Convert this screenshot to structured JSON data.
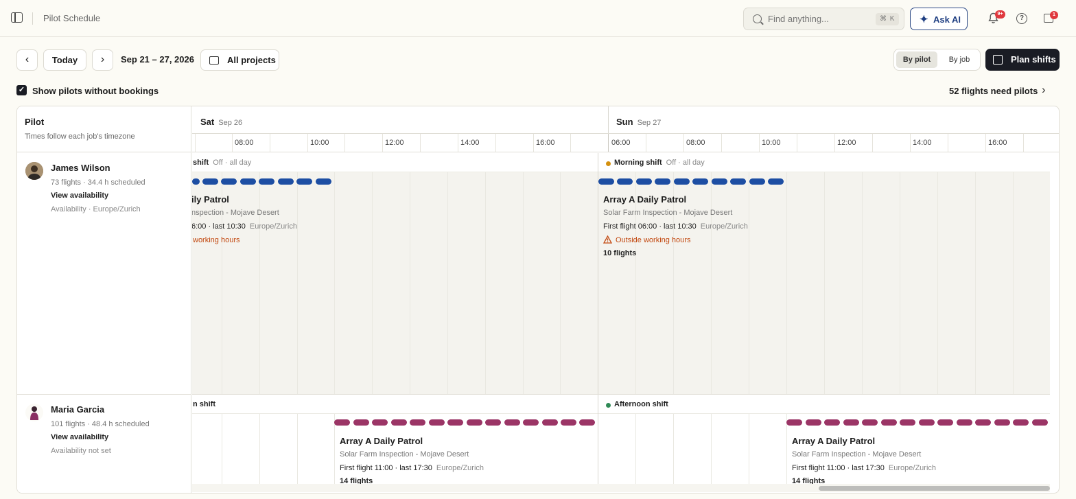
{
  "header": {
    "breadcrumb": "Pilot Schedule",
    "search_placeholder": "Find anything...",
    "search_shortcut": "⌘ K",
    "ask_ai_label": "Ask AI",
    "notification_badge": "9+",
    "gift_badge": "1"
  },
  "toolbar": {
    "today_label": "Today",
    "date_range": "Sep 21 – 27, 2026",
    "projects_label": "All projects",
    "view_by_pilot": "By pilot",
    "view_by_job": "By job",
    "plan_shifts_label": "Plan shifts",
    "show_pilots_label": "Show pilots without bookings",
    "show_pilots_checked": true,
    "flights_need_pilots": "52 flights need pilots"
  },
  "grid": {
    "pilot_header": "Pilot",
    "pilot_subheader": "Times follow each job's timezone",
    "days": [
      {
        "day": "Sat",
        "date": "Sep 26"
      },
      {
        "day": "Sun",
        "date": "Sep 27"
      }
    ],
    "sat_times": [
      "08:00",
      "10:00",
      "12:00",
      "14:00",
      "16:00"
    ],
    "sun_times": [
      "06:00",
      "08:00",
      "10:00",
      "12:00",
      "14:00",
      "16:00"
    ]
  },
  "pilots": [
    {
      "name": "James Wilson",
      "stats": "73 flights · 34.4 h scheduled",
      "link": "View availability",
      "availability": "Availability · Europe/Zurich",
      "bar_color": "#1d4ea3",
      "sat_shift": "shift",
      "sat_shift_status": "Off · all day",
      "sun_shift": "Morning shift",
      "sun_shift_status": "Off · all day",
      "sun_shift_dot": "#d4900e",
      "sat_job": {
        "title": "ily Patrol",
        "subtitle": "nspection - Mojave Desert",
        "flight": "6:00 · last 10:30",
        "tz": "Europe/Zurich",
        "warning": "working hours"
      },
      "sun_job": {
        "title": "Array A Daily Patrol",
        "subtitle": "Solar Farm Inspection - Mojave Desert",
        "flight": "First flight 06:00 · last 10:30",
        "tz": "Europe/Zurich",
        "warning": "Outside working hours",
        "count": "10 flights"
      }
    },
    {
      "name": "Maria Garcia",
      "stats": "101 flights · 48.4 h scheduled",
      "link": "View availability",
      "availability": "Availability not set",
      "bar_color": "#9b3566",
      "sat_shift": "n shift",
      "sun_shift": "Afternoon shift",
      "sun_shift_dot": "#2f8a56",
      "sat_job": {
        "title": "Array A Daily Patrol",
        "subtitle": "Solar Farm Inspection - Mojave Desert",
        "flight": "First flight 11:00 · last 17:30",
        "tz": "Europe/Zurich",
        "count": "14 flights"
      },
      "sun_job": {
        "title": "Array A Daily Patrol",
        "subtitle": "Solar Farm Inspection - Mojave Desert",
        "flight": "First flight 11:00 · last 17:30",
        "tz": "Europe/Zurich",
        "count": "14 flights"
      }
    }
  ]
}
